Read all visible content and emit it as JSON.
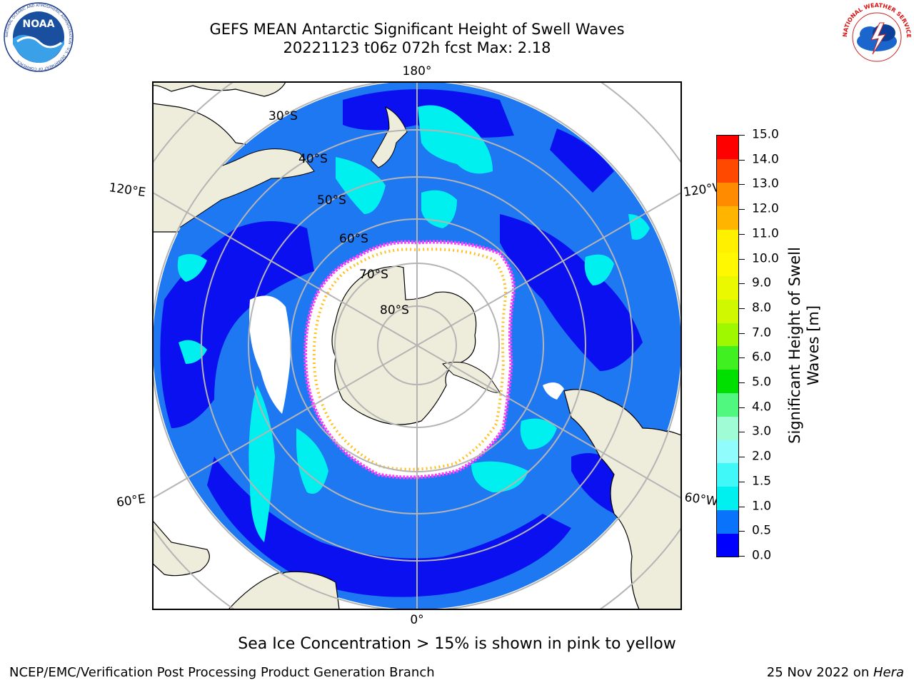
{
  "header": {
    "title_line1": "GEFS MEAN Antarctic Significant Height of Swell Waves",
    "title_line2": "20221123 t06z 072h fcst   Max: 2.18"
  },
  "logos": {
    "noaa": {
      "text": "NOAA",
      "ring_text": "NATIONAL OCEANIC AND ATMOSPHERIC ADMINISTRATION · U.S. DEPARTMENT OF COMMERCE"
    },
    "nws": {
      "ring_text": "NATIONAL WEATHER SERVICE"
    }
  },
  "map": {
    "projection": "south-polar-stereographic",
    "longitude_labels": {
      "top": "180°",
      "bottom": "0°",
      "upper_left": "120°E",
      "lower_left": "60°E",
      "upper_right": "120°W",
      "lower_right": "60°W"
    },
    "latitude_labels": [
      "30°S",
      "40°S",
      "50°S",
      "60°S",
      "70°S",
      "80°S"
    ],
    "colors": {
      "land": "#eeeddc",
      "ocean_low": "#0a10f0",
      "ocean_mid": "#1e78f2",
      "ocean_high": "#00f0f0",
      "ice": "#ffffff",
      "ice_edge_pink": "#ff40ff",
      "ice_edge_yellow": "#ffc020",
      "grid": "#b4b4b4"
    }
  },
  "colorbar": {
    "label": "Significant Height of Swell Waves [m]",
    "ticks": [
      "0.0",
      "0.5",
      "1.0",
      "1.5",
      "2.0",
      "3.0",
      "4.0",
      "5.0",
      "6.0",
      "7.0",
      "8.0",
      "9.0",
      "10.0",
      "11.0",
      "12.0",
      "13.0",
      "14.0",
      "15.0"
    ],
    "colors": [
      "#0000ff",
      "#0a73fb",
      "#00f0f0",
      "#40f8f8",
      "#90fcfc",
      "#a0fcd4",
      "#50f880",
      "#00e000",
      "#40f020",
      "#a0f800",
      "#d0f800",
      "#eaf800",
      "#fff800",
      "#fff000",
      "#ffb400",
      "#ff8c00",
      "#ff4800",
      "#ff0000"
    ]
  },
  "caption": "Sea Ice Concentration > 15% is shown in pink to yellow",
  "footer": {
    "left": "NCEP/EMC/Verification Post Processing Product Generation Branch",
    "right_date": "25 Nov 2022 on ",
    "right_host": "Hera"
  }
}
